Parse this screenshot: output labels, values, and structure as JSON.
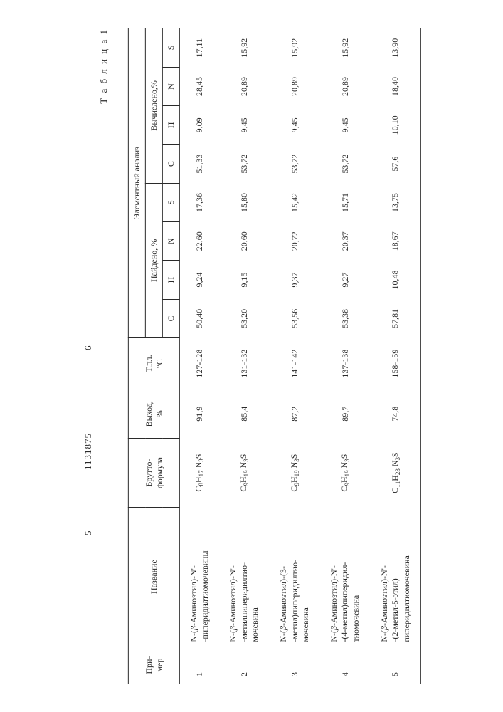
{
  "header": {
    "left_page": "5",
    "doc_number": "1131875",
    "right_page": "6",
    "table_label": "Т а б л и ц а 1"
  },
  "columns": {
    "primer": "При-\nмер",
    "name": "Название",
    "brutto": "Брутто-\nформула",
    "yield": "Выход,\n%",
    "mp": "Т.пл.\n°С",
    "analysis": "Элементный анализ",
    "found": "Найдено, %",
    "calc": "Вычислено,%",
    "C": "C",
    "H": "H",
    "N": "N",
    "S": "S"
  },
  "rows": [
    {
      "n": "1",
      "name": "N-(β-Аминоэтил)-N'-\n-пиперидилтиомочевины",
      "formula": "C₈H₁₇ N₃S",
      "yield": "91,9",
      "mp": "127-128",
      "fC": "50,40",
      "fH": "9,24",
      "fN": "22,60",
      "fS": "17,36",
      "cC": "51,33",
      "cH": "9,09",
      "cN": "28,45",
      "cS": "17,11"
    },
    {
      "n": "2",
      "name": "N-(β-Аминоэтил)-N'-\n-метилпиперидилтио-\nмочевина",
      "formula": "C₉H₁₉ N₃S",
      "yield": "85,4",
      "mp": "131-132",
      "fC": "53,20",
      "fH": "9,15",
      "fN": "20,60",
      "fS": "15,80",
      "cC": "53,72",
      "cH": "9,45",
      "cN": "20,89",
      "cS": "15,92"
    },
    {
      "n": "3",
      "name": "N-(β-Аминоэтил)-(3-\n-метил)пиперидилтио-\nмочевина",
      "formula": "C₉H₁₉ N₃S",
      "yield": "87,2",
      "mp": "141-142",
      "fC": "53,56",
      "fH": "9,37",
      "fN": "20,72",
      "fS": "15,42",
      "cC": "53,72",
      "cH": "9,45",
      "cN": "20,89",
      "cS": "15,92"
    },
    {
      "n": "4",
      "name": "N-(β-Аминоэтил)-N'-\n-(4-метил)пиперидил-\nтиомочевина",
      "formula": "C₉H₁₉ N₃S",
      "yield": "89,7",
      "mp": "137-138",
      "fC": "53,38",
      "fH": "9,27",
      "fN": "20,37",
      "fS": "15,71",
      "cC": "53,72",
      "cH": "9,45",
      "cN": "20,89",
      "cS": "15,92"
    },
    {
      "n": "5",
      "name": "N-(β-Аминоэтил)-N'-\n-(2-метил-5-этил)\nпиперидилтиомочевина",
      "formula": "C₁₁H₂₃ N₃S",
      "yield": "74,8",
      "mp": "158-159",
      "fC": "57,81",
      "fH": "10,48",
      "fN": "18,67",
      "fS": "13,75",
      "cC": "57,6",
      "cH": "10,10",
      "cN": "18,40",
      "cS": "13,90"
    }
  ]
}
